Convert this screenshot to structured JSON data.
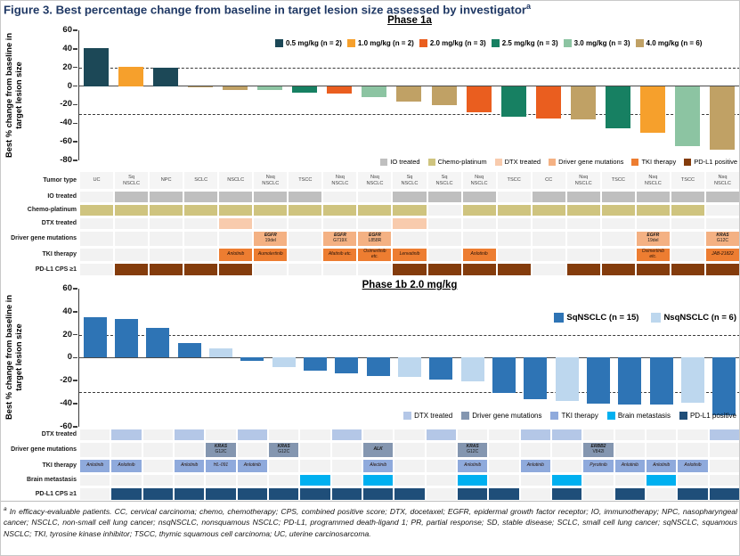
{
  "figure_title": "Figure 3. Best percentage change from baseline in target lesion size assessed by investigator",
  "figure_title_sup": "a",
  "colors": {
    "title_text": "#1f3864",
    "empty_cell": "#f2f2f2",
    "tumor_cell_bg": "#f5f5f5",
    "axis": "#3c3c3c"
  },
  "chart_data": [
    {
      "type": "bar",
      "title": "Phase 1a",
      "ylabel": "Best % change from baseline in target lesion size",
      "ylim": [
        -80,
        60
      ],
      "yticks": [
        60,
        40,
        20,
        0,
        -20,
        -40,
        -60,
        -80
      ],
      "reference_lines": [
        20,
        -30
      ],
      "grid": false,
      "legend_position": "top-inside",
      "legend": [
        {
          "key": "0.5",
          "label": "0.5 mg/kg (n = 2)",
          "color": "#1c4857"
        },
        {
          "key": "1.0",
          "label": "1.0 mg/kg (n = 2)",
          "color": "#f6a02c"
        },
        {
          "key": "2.0",
          "label": "2.0 mg/kg (n = 3)",
          "color": "#ea5e1f"
        },
        {
          "key": "2.5",
          "label": "2.5 mg/kg (n = 3)",
          "color": "#178062"
        },
        {
          "key": "3.0",
          "label": "3.0 mg/kg (n = 3)",
          "color": "#8cc4a2"
        },
        {
          "key": "4.0",
          "label": "4.0 mg/kg (n = 6)",
          "color": "#c0a165"
        }
      ],
      "categories": [
        "UC",
        "Sq NSCLC",
        "NPC",
        "SCLC",
        "NSCLC",
        "Nsq NSCLC",
        "TSCC",
        "Nsq NSCLC",
        "Nsq NSCLC",
        "Sq NSCLC",
        "Sq NSCLC",
        "Nsq NSCLC",
        "TSCC",
        "CC",
        "Nsq NSCLC",
        "TSCC",
        "Nsq NSCLC",
        "TSCC",
        "Nsq NSCLC"
      ],
      "values": [
        41,
        21,
        20,
        -1,
        -4,
        -4,
        -7,
        -8,
        -12,
        -17,
        -21,
        -28,
        -33,
        -35,
        -36,
        -45,
        -50,
        -65,
        -68
      ],
      "groups": [
        "0.5",
        "1.0",
        "0.5",
        "4.0",
        "4.0",
        "3.0",
        "2.5",
        "2.0",
        "3.0",
        "4.0",
        "4.0",
        "2.0",
        "2.5",
        "2.0",
        "4.0",
        "2.5",
        "1.0",
        "3.0",
        "4.0"
      ]
    },
    {
      "type": "bar",
      "title": "Phase 1b 2.0 mg/kg",
      "ylabel": "Best % change from baseline in target lesion size",
      "ylim": [
        -60,
        60
      ],
      "yticks": [
        60,
        40,
        20,
        0,
        -20,
        -40,
        -60
      ],
      "reference_lines": [
        20,
        -30
      ],
      "grid": false,
      "legend_position": "top-right-inside",
      "legend": [
        {
          "key": "Sq",
          "label": "SqNSCLC (n = 15)",
          "color": "#2e74b5"
        },
        {
          "key": "Nsq",
          "label": "NsqNSCLC (n = 6)",
          "color": "#bdd7ee"
        }
      ],
      "categories": [
        "1",
        "2",
        "3",
        "4",
        "5",
        "6",
        "7",
        "8",
        "9",
        "10",
        "11",
        "12",
        "13",
        "14",
        "15",
        "16",
        "17",
        "18",
        "19",
        "20",
        "21"
      ],
      "values": [
        35,
        34,
        26,
        13,
        8,
        -3,
        -8,
        -11,
        -14,
        -16,
        -17,
        -19,
        -21,
        -31,
        -36,
        -38,
        -40,
        -41,
        -41,
        -39,
        -50
      ],
      "groups": [
        "Sq",
        "Sq",
        "Sq",
        "Sq",
        "Nsq",
        "Sq",
        "Nsq",
        "Sq",
        "Sq",
        "Sq",
        "Nsq",
        "Sq",
        "Nsq",
        "Sq",
        "Sq",
        "Nsq",
        "Sq",
        "Sq",
        "Sq",
        "Nsq",
        "Sq"
      ]
    }
  ],
  "phase1a": {
    "title": "Phase 1a",
    "category_legend": [
      {
        "key": "io",
        "label": "IO treated",
        "color": "#bfbfbf"
      },
      {
        "key": "chemo",
        "label": "Chemo-platinum",
        "color": "#cfc47f"
      },
      {
        "key": "dtx",
        "label": "DTX treated",
        "color": "#f8cbad"
      },
      {
        "key": "driver",
        "label": "Driver gene mutations",
        "color": "#f4b183"
      },
      {
        "key": "tki",
        "label": "TKI therapy",
        "color": "#ed7d31"
      },
      {
        "key": "pdl1",
        "label": "PD-L1 positive",
        "color": "#843c0c"
      }
    ],
    "table": {
      "row_labels": [
        "Tumor type",
        "IO treated",
        "Chemo-platinum",
        "DTX treated",
        "Driver gene mutations",
        "TKI therapy",
        "PD-L1 CPS ≥1"
      ],
      "tumor_types": [
        "UC",
        "Sq|NSCLC",
        "NPC",
        "SCLC",
        "NSCLC",
        "Nsq|NSCLC",
        "TSCC",
        "Nsq|NSCLC",
        "Nsq|NSCLC",
        "Sq|NSCLC",
        "Sq|NSCLC",
        "Nsq|NSCLC",
        "TSCC",
        "CC",
        "Nsq|NSCLC",
        "TSCC",
        "Nsq|NSCLC",
        "TSCC",
        "Nsq|NSCLC"
      ],
      "io": [
        0,
        1,
        1,
        1,
        1,
        1,
        1,
        0,
        0,
        1,
        1,
        1,
        0,
        1,
        1,
        1,
        1,
        1,
        1
      ],
      "chemo": [
        1,
        1,
        1,
        1,
        1,
        1,
        1,
        1,
        1,
        1,
        0,
        1,
        1,
        1,
        1,
        1,
        1,
        1,
        0
      ],
      "dtx": [
        0,
        0,
        0,
        0,
        1,
        0,
        0,
        0,
        0,
        1,
        0,
        0,
        0,
        0,
        0,
        0,
        0,
        0,
        0
      ],
      "driver": [
        "",
        "",
        "",
        "",
        "",
        "EGFR|19del",
        "",
        "EGFR|G719X",
        "EGFR|L858R",
        "",
        "",
        "",
        "",
        "",
        "",
        "",
        "EGFR|19del",
        "",
        "KRAS|G12C"
      ],
      "tki": [
        "",
        "",
        "",
        "",
        "Anlotinib",
        "Aumolertinib",
        "",
        "Afatinib etc.",
        "Osimertinib|etc.",
        "Lenvatinib",
        "",
        "Anlotinib",
        "",
        "",
        "",
        "",
        "Osimertinib|etc.",
        "",
        "JAB-21822"
      ],
      "pdl1": [
        0,
        1,
        1,
        1,
        1,
        0,
        0,
        0,
        0,
        1,
        1,
        1,
        1,
        0,
        1,
        1,
        1,
        1,
        1
      ]
    }
  },
  "phase1b": {
    "title": "Phase 1b 2.0 mg/kg",
    "category_legend": [
      {
        "key": "dtx",
        "label": "DTX treated",
        "color": "#b4c7e7"
      },
      {
        "key": "driver",
        "label": "Driver gene mutations",
        "color": "#8496b0"
      },
      {
        "key": "tki",
        "label": "TKI therapy",
        "color": "#8faadc"
      },
      {
        "key": "brain",
        "label": "Brain metastasis",
        "color": "#00b0f0"
      },
      {
        "key": "pdl1",
        "label": "PD-L1 positive",
        "color": "#1f4e79"
      }
    ],
    "table": {
      "row_labels": [
        "DTX treated",
        "Driver gene mutations",
        "TKI therapy",
        "Brain metastasis",
        "PD-L1 CPS ≥1"
      ],
      "dtx": [
        0,
        1,
        0,
        1,
        0,
        1,
        0,
        0,
        1,
        0,
        0,
        1,
        0,
        0,
        1,
        1,
        0,
        0,
        0,
        0,
        1
      ],
      "driver": [
        "",
        "",
        "",
        "",
        "KRAS|G12C",
        "",
        "KRAS|G12C",
        "",
        "",
        "ALK",
        "",
        "",
        "KRAS|G12C",
        "",
        "",
        "",
        "ERBB2|V842I",
        "",
        "",
        "",
        ""
      ],
      "tki": [
        "Anlotinib",
        "Anlotinib",
        "",
        "Anlotinib",
        "HL-091",
        "Anlotinib",
        "",
        "",
        "",
        "Alectinib",
        "",
        "",
        "Anlotinib",
        "",
        "Anlotinib",
        "",
        "Pyrotinib",
        "Anlotinib",
        "Anlotinib",
        "Anlotinib",
        ""
      ],
      "brain": [
        0,
        0,
        0,
        0,
        0,
        0,
        0,
        1,
        0,
        1,
        0,
        0,
        1,
        0,
        0,
        1,
        0,
        0,
        1,
        0,
        0
      ],
      "pdl1": [
        0,
        1,
        1,
        1,
        1,
        1,
        1,
        1,
        1,
        1,
        1,
        0,
        1,
        1,
        0,
        1,
        0,
        1,
        0,
        1,
        1
      ]
    }
  },
  "footnote": {
    "marker": "a",
    "text": " In efficacy-evaluable patients. CC, cervical carcinoma; chemo, chemotherapy; CPS, combined positive score; DTX, docetaxel; EGFR, epidermal growth factor receptor; IO, immunotherapy; NPC, nasopharyngeal cancer; NSCLC, non-small cell lung cancer; nsqNSCLC, nonsquamous NSCLC; PD-L1, programmed death-ligand 1; PR, partial response; SD, stable disease; SCLC, small cell lung cancer; sqNSCLC, squamous NSCLC; TKI, tyrosine kinase inhibitor; TSCC, thymic squamous cell carcinoma; UC, uterine carcinosarcoma."
  }
}
